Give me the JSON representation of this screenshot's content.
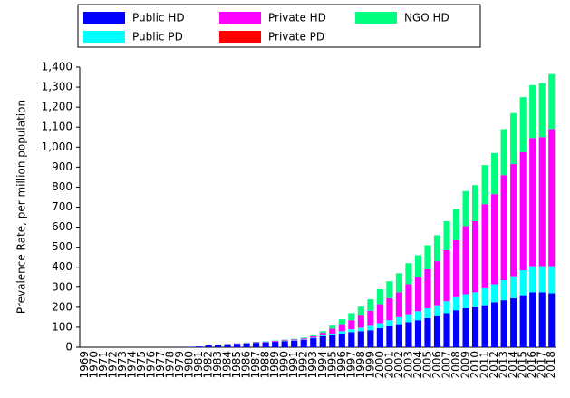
{
  "chart_data": {
    "type": "stacked_bar",
    "ylabel": "Prevalence Rate, per million population",
    "categories": [
      "1969",
      "1970",
      "1971",
      "1972",
      "1973",
      "1974",
      "1975",
      "1976",
      "1977",
      "1978",
      "1979",
      "1980",
      "1981",
      "1982",
      "1983",
      "1984",
      "1985",
      "1986",
      "1987",
      "1988",
      "1989",
      "1990",
      "1991",
      "1992",
      "1993",
      "1994",
      "1995",
      "1996",
      "1997",
      "1998",
      "1999",
      "2000",
      "2001",
      "2002",
      "2003",
      "2004",
      "2005",
      "2006",
      "2007",
      "2008",
      "2009",
      "2010",
      "2011",
      "2012",
      "2013",
      "2014",
      "2015",
      "2016",
      "2017",
      "2018"
    ],
    "series": [
      {
        "name": "Public HD",
        "color": "#0000ff",
        "values": [
          0,
          0,
          0,
          0,
          0,
          0,
          0,
          0,
          0,
          0,
          1,
          2,
          4,
          9,
          12,
          15,
          17,
          19,
          22,
          24,
          27,
          30,
          33,
          37,
          45,
          55,
          60,
          68,
          75,
          80,
          85,
          95,
          105,
          115,
          125,
          135,
          145,
          155,
          170,
          185,
          195,
          200,
          210,
          225,
          235,
          245,
          260,
          275,
          275,
          270
        ]
      },
      {
        "name": "Public PD",
        "color": "#00ffff",
        "values": [
          0,
          0,
          0,
          0,
          0,
          0,
          0,
          0,
          0,
          0,
          0,
          0,
          0,
          0,
          0,
          0,
          0,
          0,
          0,
          1,
          1,
          1,
          2,
          2,
          3,
          5,
          8,
          12,
          15,
          18,
          22,
          25,
          30,
          35,
          40,
          45,
          50,
          55,
          60,
          65,
          70,
          75,
          85,
          90,
          100,
          110,
          125,
          130,
          130,
          135
        ]
      },
      {
        "name": "Private HD",
        "color": "#ff00ff",
        "values": [
          0,
          0,
          0,
          0,
          0,
          0,
          0,
          0,
          0,
          0,
          0,
          0,
          0,
          0,
          1,
          1,
          2,
          2,
          3,
          3,
          4,
          4,
          4,
          5,
          7,
          12,
          25,
          35,
          45,
          60,
          75,
          95,
          110,
          125,
          150,
          170,
          195,
          220,
          255,
          285,
          340,
          355,
          420,
          450,
          525,
          560,
          590,
          640,
          645,
          685
        ]
      },
      {
        "name": "Private PD",
        "color": "#ff0000",
        "values": [
          0,
          0,
          0,
          0,
          0,
          0,
          0,
          0,
          0,
          0,
          0,
          0,
          0,
          0,
          0,
          0,
          0,
          0,
          0,
          0,
          0,
          0,
          0,
          0,
          0,
          0,
          0,
          0,
          0,
          0,
          0,
          0,
          0,
          0,
          0,
          0,
          0,
          0,
          0,
          0,
          0,
          0,
          0,
          0,
          0,
          0,
          0,
          0,
          0,
          0
        ]
      },
      {
        "name": "NGO HD",
        "color": "#00ff7f",
        "values": [
          0,
          0,
          0,
          0,
          0,
          0,
          0,
          0,
          0,
          0,
          0,
          0,
          0,
          0,
          1,
          1,
          1,
          2,
          2,
          2,
          2,
          3,
          3,
          4,
          5,
          8,
          15,
          25,
          35,
          45,
          58,
          75,
          85,
          95,
          105,
          110,
          120,
          130,
          145,
          155,
          175,
          180,
          195,
          205,
          230,
          255,
          275,
          265,
          270,
          275
        ]
      }
    ],
    "ylim": [
      0,
      1400
    ],
    "yticks": [
      0,
      100,
      200,
      300,
      400,
      500,
      600,
      700,
      800,
      900,
      {
        "value": 1000,
        "label": "1,000"
      },
      {
        "value": 1100,
        "label": "1,100"
      },
      {
        "value": 1200,
        "label": "1,200"
      },
      {
        "value": 1300,
        "label": "1,300"
      },
      {
        "value": 1400,
        "label": "1,400"
      }
    ]
  }
}
